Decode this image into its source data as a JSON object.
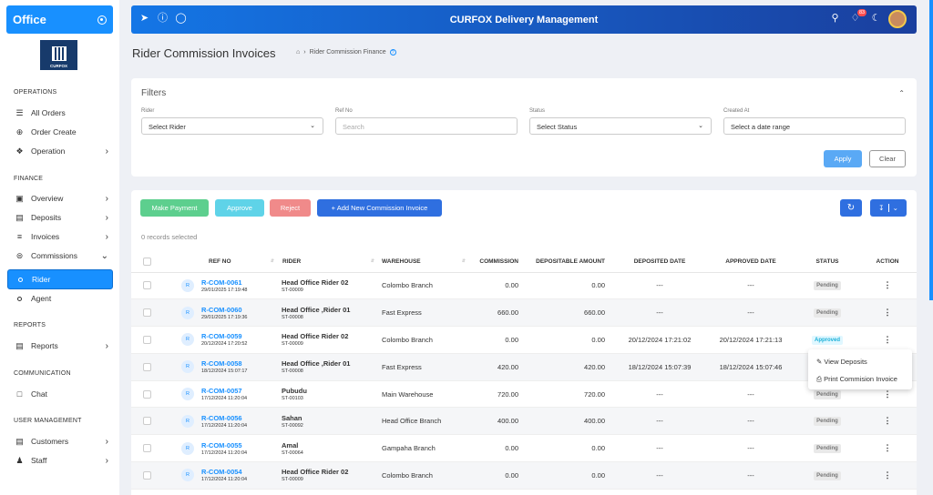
{
  "sidebar": {
    "brand": "Office",
    "logo_text": "CURFOX",
    "sections": {
      "operations": "OPERATIONS",
      "finance": "FINANCE",
      "reports": "REPORTS",
      "communication": "COMMUNICATION",
      "user_management": "USER MANAGEMENT"
    },
    "items": {
      "all_orders": "All Orders",
      "order_create": "Order Create",
      "operation": "Operation",
      "overview": "Overview",
      "deposits": "Deposits",
      "invoices": "Invoices",
      "commissions": "Commissions",
      "rider": "Rider",
      "agent": "Agent",
      "reports": "Reports",
      "chat": "Chat",
      "customers": "Customers",
      "staff": "Staff"
    }
  },
  "topbar": {
    "title": "CURFOX Delivery Management",
    "notification_count": "83"
  },
  "page": {
    "title": "Rider Commission Invoices",
    "breadcrumb": "Rider Commission Finance"
  },
  "filters": {
    "title": "Filters",
    "rider_label": "Rider",
    "rider_value": "Select Rider",
    "refno_label": "Ref No",
    "refno_placeholder": "Search",
    "status_label": "Status",
    "status_value": "Select Status",
    "created_label": "Created At",
    "created_value": "Select a date range",
    "apply": "Apply",
    "clear": "Clear"
  },
  "actions": {
    "make_payment": "Make Payment",
    "approve": "Approve",
    "reject": "Reject",
    "add_new": "+ Add New Commission Invoice",
    "records_selected": "0 records selected"
  },
  "table": {
    "headers": {
      "ref": "REF NO",
      "rider": "RIDER",
      "warehouse": "WAREHOUSE",
      "commission": "COMMISSION",
      "depositable": "DEPOSITABLE AMOUNT",
      "deposited": "DEPOSITED DATE",
      "approved": "APPROVED DATE",
      "status": "STATUS",
      "action": "ACTION"
    },
    "rows": [
      {
        "avatar": "R",
        "ref": "R-COM-0061",
        "date": "29/01/2025 17:19:48",
        "rider": "Head Office Rider 02",
        "rider_code": "ST-00009",
        "warehouse": "Colombo Branch",
        "commission": "0.00",
        "depositable": "0.00",
        "deposited": "---",
        "approved": "---",
        "status": "Pending"
      },
      {
        "avatar": "R",
        "ref": "R-COM-0060",
        "date": "29/01/2025 17:19:36",
        "rider": "Head Office ,Rider 01",
        "rider_code": "ST-00008",
        "warehouse": "Fast Express",
        "commission": "660.00",
        "depositable": "660.00",
        "deposited": "---",
        "approved": "---",
        "status": "Pending"
      },
      {
        "avatar": "R",
        "ref": "R-COM-0059",
        "date": "20/12/2024 17:20:52",
        "rider": "Head Office Rider 02",
        "rider_code": "ST-00009",
        "warehouse": "Colombo Branch",
        "commission": "0.00",
        "depositable": "0.00",
        "deposited": "20/12/2024 17:21:02",
        "approved": "20/12/2024 17:21:13",
        "status": "Approved"
      },
      {
        "avatar": "R",
        "ref": "R-COM-0058",
        "date": "18/12/2024 15:07:17",
        "rider": "Head Office ,Rider 01",
        "rider_code": "ST-00008",
        "warehouse": "Fast Express",
        "commission": "420.00",
        "depositable": "420.00",
        "deposited": "18/12/2024 15:07:39",
        "approved": "18/12/2024 15:07:46",
        "status": ""
      },
      {
        "avatar": "R",
        "ref": "R-COM-0057",
        "date": "17/12/2024 11:20:04",
        "rider": "Pubudu",
        "rider_code": "ST-00103",
        "warehouse": "Main Warehouse",
        "commission": "720.00",
        "depositable": "720.00",
        "deposited": "---",
        "approved": "---",
        "status": "Pending"
      },
      {
        "avatar": "R",
        "ref": "R-COM-0056",
        "date": "17/12/2024 11:20:04",
        "rider": "Sahan",
        "rider_code": "ST-00092",
        "warehouse": "Head Office Branch",
        "commission": "400.00",
        "depositable": "400.00",
        "deposited": "---",
        "approved": "---",
        "status": "Pending"
      },
      {
        "avatar": "R",
        "ref": "R-COM-0055",
        "date": "17/12/2024 11:20:04",
        "rider": "Amal",
        "rider_code": "ST-00064",
        "warehouse": "Gampaha Branch",
        "commission": "0.00",
        "depositable": "0.00",
        "deposited": "---",
        "approved": "---",
        "status": "Pending"
      },
      {
        "avatar": "R",
        "ref": "R-COM-0054",
        "date": "17/12/2024 11:20:04",
        "rider": "Head Office Rider 02",
        "rider_code": "ST-00009",
        "warehouse": "Colombo Branch",
        "commission": "0.00",
        "depositable": "0.00",
        "deposited": "---",
        "approved": "---",
        "status": "Pending"
      }
    ]
  },
  "menu": {
    "view_deposits": "View Deposits",
    "print_invoice": "Print Commision Invoice"
  },
  "colors": {
    "primary": "#1890ff",
    "make_payment": "#5dcf8e",
    "approve": "#5fd3e8",
    "reject": "#f08a8a",
    "add_new": "#2f6fe0"
  }
}
